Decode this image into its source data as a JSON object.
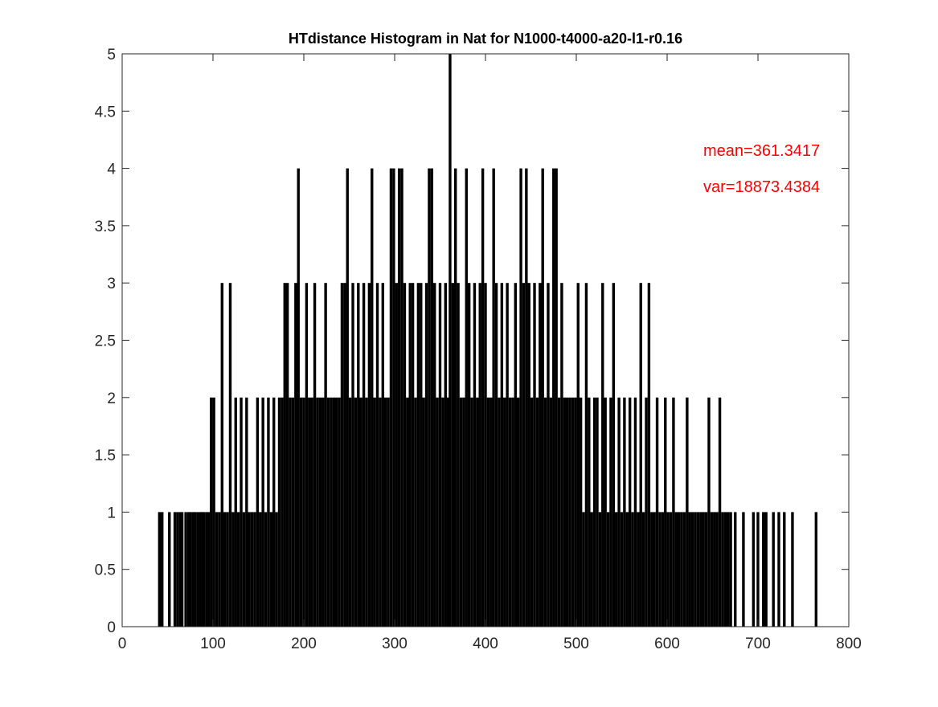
{
  "chart_data": {
    "type": "bar",
    "title": "HTdistance Histogram in Nat for N1000-t4000-a20-l1-r0.16",
    "x": [
      41,
      44,
      52,
      58,
      61,
      64,
      66,
      70,
      73,
      75,
      78,
      80,
      83,
      86,
      88,
      90,
      93,
      95,
      98,
      101,
      104,
      107,
      110,
      113,
      116,
      119,
      122,
      125,
      128,
      131,
      134,
      137,
      140,
      143,
      146,
      149,
      152,
      155,
      158,
      161,
      164,
      167,
      170,
      173,
      176,
      179,
      182,
      185,
      188,
      191,
      194,
      197,
      200,
      203,
      206,
      209,
      212,
      215,
      218,
      221,
      224,
      227,
      230,
      233,
      236,
      239,
      242,
      245,
      248,
      251,
      254,
      257,
      260,
      263,
      266,
      269,
      272,
      275,
      278,
      281,
      284,
      287,
      290,
      293,
      296,
      299,
      302,
      305,
      308,
      311,
      314,
      317,
      320,
      323,
      326,
      329,
      332,
      335,
      338,
      341,
      344,
      347,
      350,
      353,
      356,
      359,
      361,
      364,
      367,
      370,
      373,
      376,
      379,
      382,
      385,
      388,
      391,
      394,
      397,
      400,
      403,
      406,
      409,
      412,
      415,
      418,
      421,
      424,
      427,
      430,
      433,
      436,
      439,
      442,
      445,
      448,
      451,
      454,
      457,
      460,
      463,
      466,
      469,
      472,
      475,
      478,
      481,
      484,
      487,
      490,
      493,
      496,
      499,
      502,
      505,
      508,
      511,
      514,
      517,
      520,
      523,
      526,
      529,
      532,
      535,
      538,
      541,
      544,
      547,
      550,
      553,
      556,
      559,
      562,
      565,
      568,
      571,
      574,
      577,
      580,
      583,
      586,
      589,
      592,
      595,
      598,
      601,
      604,
      607,
      610,
      613,
      616,
      619,
      622,
      625,
      628,
      631,
      634,
      637,
      640,
      643,
      646,
      649,
      652,
      655,
      658,
      661,
      664,
      667,
      670,
      675,
      684,
      695,
      700,
      706,
      709,
      717,
      723,
      729,
      738,
      764
    ],
    "values": [
      1,
      1,
      1,
      1,
      1,
      1,
      1,
      1,
      1,
      1,
      1,
      1,
      1,
      1,
      1,
      1,
      1,
      1,
      2,
      2,
      1,
      1,
      3,
      1,
      1,
      3,
      1,
      2,
      1,
      2,
      1,
      2,
      1,
      1,
      1,
      2,
      1,
      2,
      1,
      2,
      1,
      2,
      1,
      2,
      2,
      3,
      3,
      2,
      2,
      3,
      4,
      2,
      2,
      3,
      2,
      2,
      3,
      2,
      2,
      2,
      3,
      2,
      2,
      2,
      2,
      2,
      3,
      3,
      4,
      2,
      3,
      2,
      3,
      2,
      3,
      2,
      3,
      4,
      2,
      3,
      2,
      3,
      2,
      2,
      4,
      4,
      3,
      4,
      4,
      3,
      2,
      3,
      3,
      2,
      3,
      3,
      2,
      3,
      4,
      4,
      3,
      2,
      3,
      2,
      3,
      2,
      5,
      3,
      4,
      3,
      2,
      2,
      4,
      3,
      2,
      3,
      2,
      3,
      4,
      3,
      2,
      2,
      4,
      3,
      2,
      3,
      2,
      3,
      2,
      2,
      3,
      2,
      4,
      3,
      4,
      3,
      2,
      3,
      2,
      3,
      4,
      2,
      3,
      2,
      4,
      4,
      2,
      3,
      2,
      2,
      2,
      2,
      2,
      3,
      2,
      1,
      3,
      2,
      1,
      2,
      2,
      1,
      3,
      2,
      1,
      2,
      3,
      1,
      2,
      1,
      2,
      1,
      2,
      1,
      2,
      1,
      3,
      1,
      2,
      3,
      1,
      1,
      2,
      1,
      1,
      2,
      1,
      1,
      2,
      1,
      1,
      1,
      1,
      2,
      1,
      1,
      1,
      1,
      1,
      1,
      1,
      2,
      1,
      1,
      1,
      2,
      1,
      1,
      1,
      1,
      1,
      1,
      1,
      1,
      1,
      1,
      1,
      1,
      1,
      1,
      1
    ],
    "color": "#000000",
    "xlim": [
      0,
      800
    ],
    "xticks": [
      0,
      100,
      200,
      300,
      400,
      500,
      600,
      700,
      800
    ],
    "ylim": [
      0,
      5
    ],
    "yticks": [
      0,
      0.5,
      1,
      1.5,
      2,
      2.5,
      3,
      3.5,
      4,
      4.5,
      5
    ],
    "grid": false,
    "annotations": [
      {
        "text": "mean=361.3417",
        "color": "#ff0000"
      },
      {
        "text": "var=18873.4384",
        "color": "#ff0000"
      }
    ]
  }
}
